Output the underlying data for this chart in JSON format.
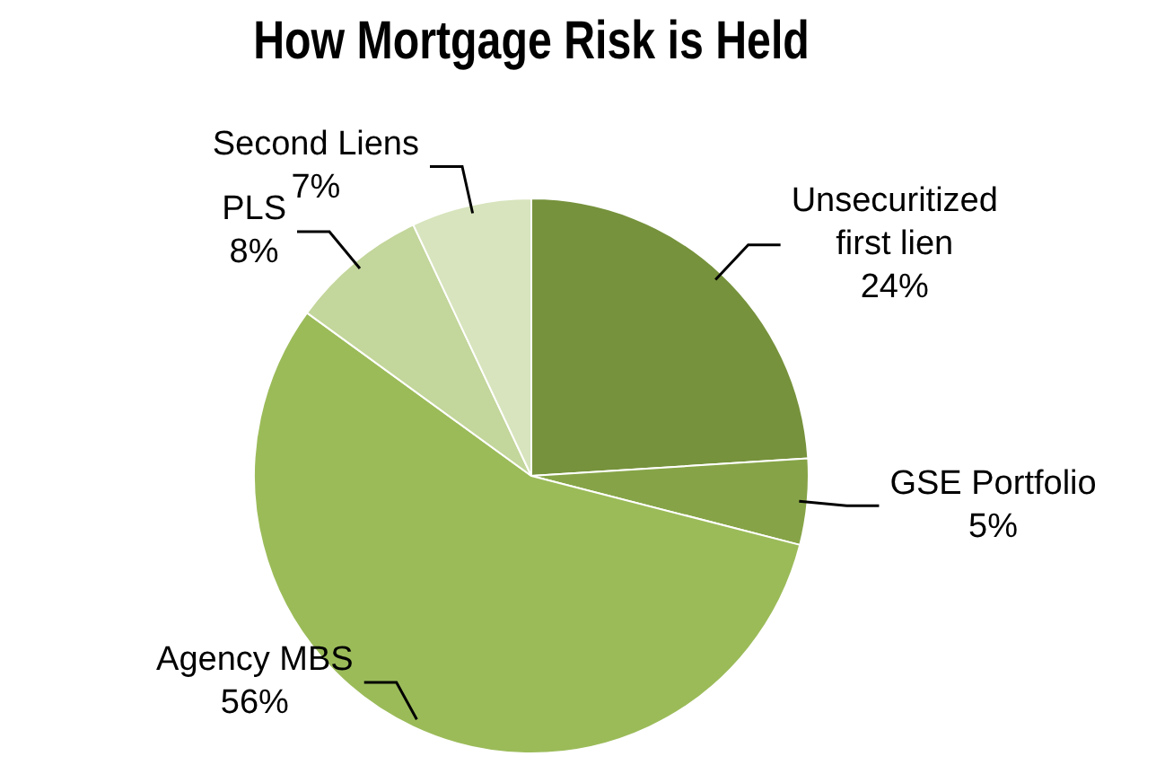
{
  "chart_data": {
    "type": "pie",
    "title": "How Mortgage Risk is Held",
    "categories": [
      "Unsecuritized first lien",
      "GSE Portfolio",
      "Agency MBS",
      "PLS",
      "Second Liens"
    ],
    "values": [
      24,
      5,
      56,
      8,
      7
    ],
    "value_labels": [
      "24%",
      "5%",
      "56%",
      "8%",
      "7%"
    ],
    "colors": [
      "#76923c",
      "#86a447",
      "#9bbb59",
      "#c3d69b",
      "#d7e4bd"
    ],
    "legend": false
  }
}
